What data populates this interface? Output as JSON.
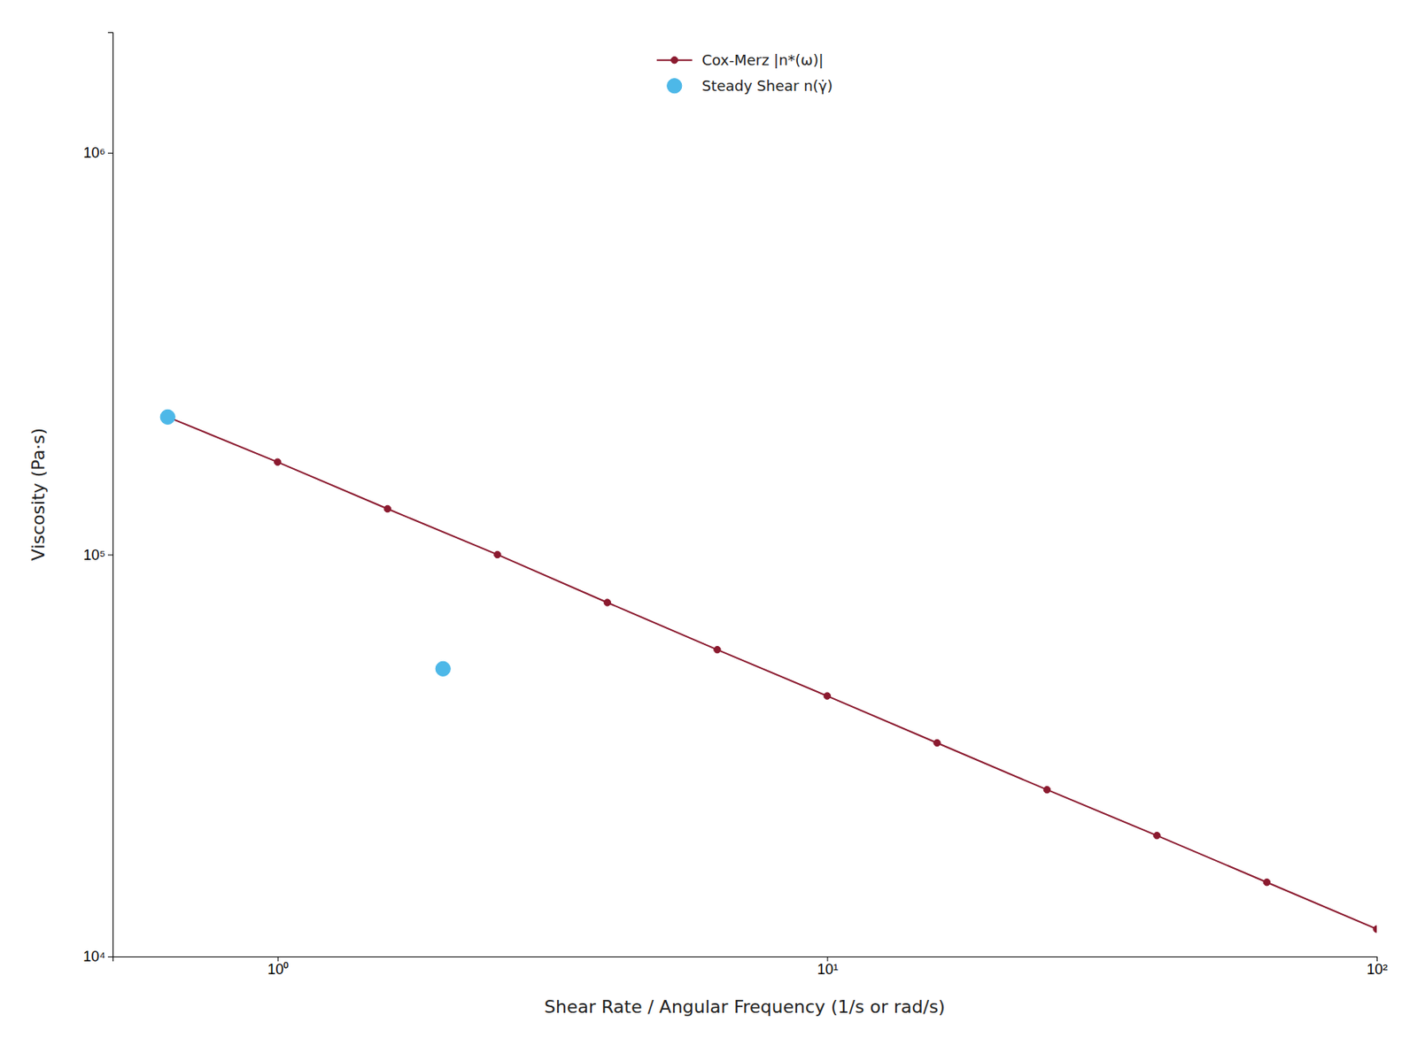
{
  "chart_data": {
    "type": "line",
    "xlabel": "Shear Rate / Angular Frequency (1/s or rad/s)",
    "ylabel": "Viscosity (Pa·s)",
    "log": true,
    "grid": false,
    "legend": "upper center",
    "xlim": [
      0.5011872336272722,
      100
    ],
    "ylim": [
      10000,
      1995262.3149688789
    ],
    "xticks": [
      {
        "value": 1,
        "label": "10⁰"
      },
      {
        "value": 10,
        "label": "10¹"
      },
      {
        "value": 100,
        "label": "10²"
      }
    ],
    "yticks": [
      {
        "value": 10000,
        "label": "10⁴"
      },
      {
        "value": 100000,
        "label": "10⁵"
      },
      {
        "value": 1000000,
        "label": "10⁶"
      }
    ],
    "series": [
      {
        "name": "Cox-Merz |n*(ω)|",
        "type": "line",
        "marker": "circle",
        "color": "#8B1A2F",
        "x": [
          0.631,
          1.0,
          1.585,
          2.512,
          3.981,
          6.31,
          10.0,
          15.85,
          25.12,
          39.81,
          63.1,
          100.0
        ],
        "values": [
          220000,
          170000,
          130000,
          100000,
          76000,
          58000,
          44500,
          34000,
          26000,
          20000,
          15300,
          11700
        ]
      },
      {
        "name": "Steady Shear n(γ̇)",
        "type": "scatter",
        "marker": "circle",
        "color": "#4DB8E8",
        "x": [
          0.631,
          2.0
        ],
        "values": [
          220000,
          52000
        ]
      }
    ]
  }
}
